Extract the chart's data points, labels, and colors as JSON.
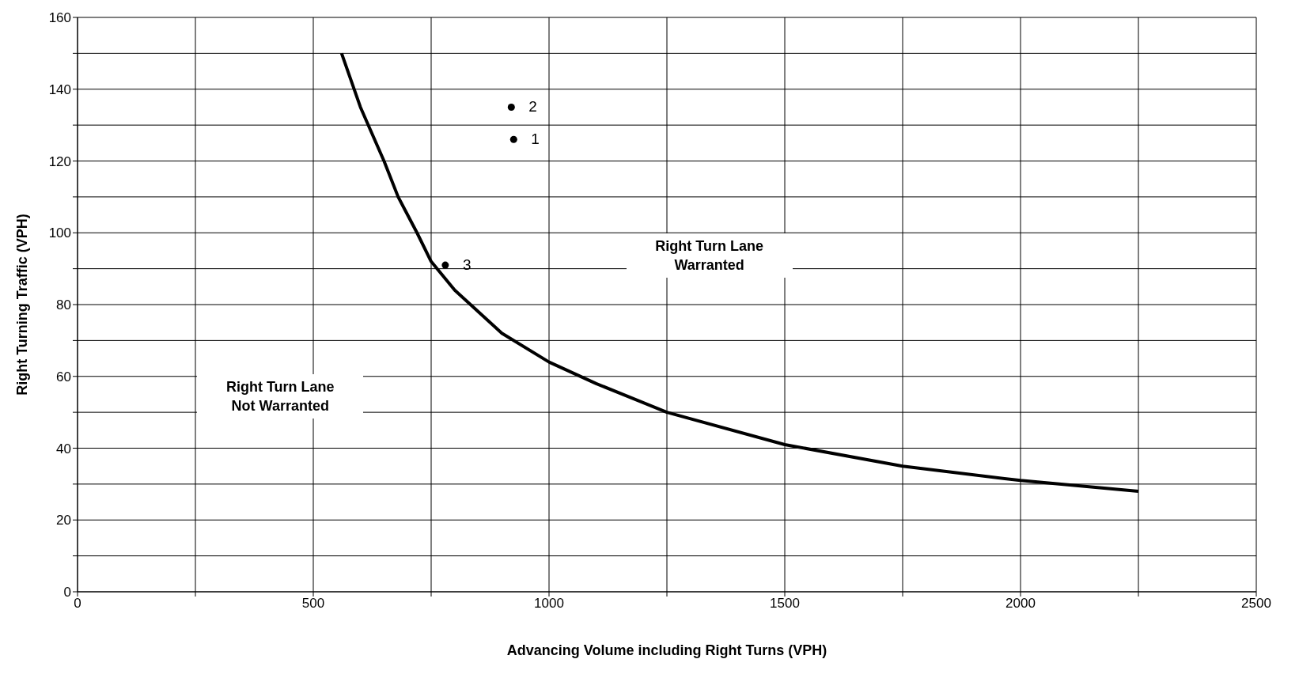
{
  "chart_data": {
    "type": "line",
    "xlabel": "Advancing Volume including Right Turns (VPH)",
    "ylabel": "Right Turning Traffic (VPH)",
    "xlim": [
      0,
      2500
    ],
    "ylim": [
      0,
      160
    ],
    "xticks": [
      0,
      {
        "value": 250,
        "label": null
      },
      500,
      {
        "value": 750,
        "label": null
      },
      1000,
      {
        "value": 1250,
        "label": null
      },
      1500,
      {
        "value": 1750,
        "label": null
      },
      2000,
      {
        "value": 2250,
        "label": null
      },
      2500
    ],
    "yticks": [
      0,
      {
        "value": 10,
        "label": null
      },
      20,
      {
        "value": 30,
        "label": null
      },
      40,
      {
        "value": 50,
        "label": null
      },
      60,
      {
        "value": 70,
        "label": null
      },
      80,
      {
        "value": 90,
        "label": null
      },
      100,
      {
        "value": 110,
        "label": null
      },
      120,
      {
        "value": 130,
        "label": null
      },
      140,
      {
        "value": 150,
        "label": null
      },
      160
    ],
    "grid": true,
    "legend": false,
    "series": [
      {
        "color": "#000000",
        "marker": "none",
        "line_style": "solid",
        "x": [
          560,
          600,
          650,
          680,
          720,
          750,
          800,
          900,
          1000,
          1100,
          1250,
          1500,
          1750,
          2000,
          2250
        ],
        "values": [
          150,
          135,
          120,
          110,
          100,
          92,
          84,
          72,
          64,
          58,
          50,
          41,
          35,
          31,
          28
        ]
      },
      {
        "type": "scatter",
        "color": "#000000",
        "marker": "circle",
        "x": [
          925,
          920,
          780
        ],
        "values": [
          126,
          135,
          91
        ]
      }
    ],
    "annotations": [
      {
        "text": "1",
        "x": 925,
        "y": 126
      },
      {
        "text": "2",
        "x": 920,
        "y": 135
      },
      {
        "text": "3",
        "x": 780,
        "y": 91
      },
      "Right Turn Lane\nWarranted",
      "Right Turn Lane\nNot Warranted"
    ]
  }
}
